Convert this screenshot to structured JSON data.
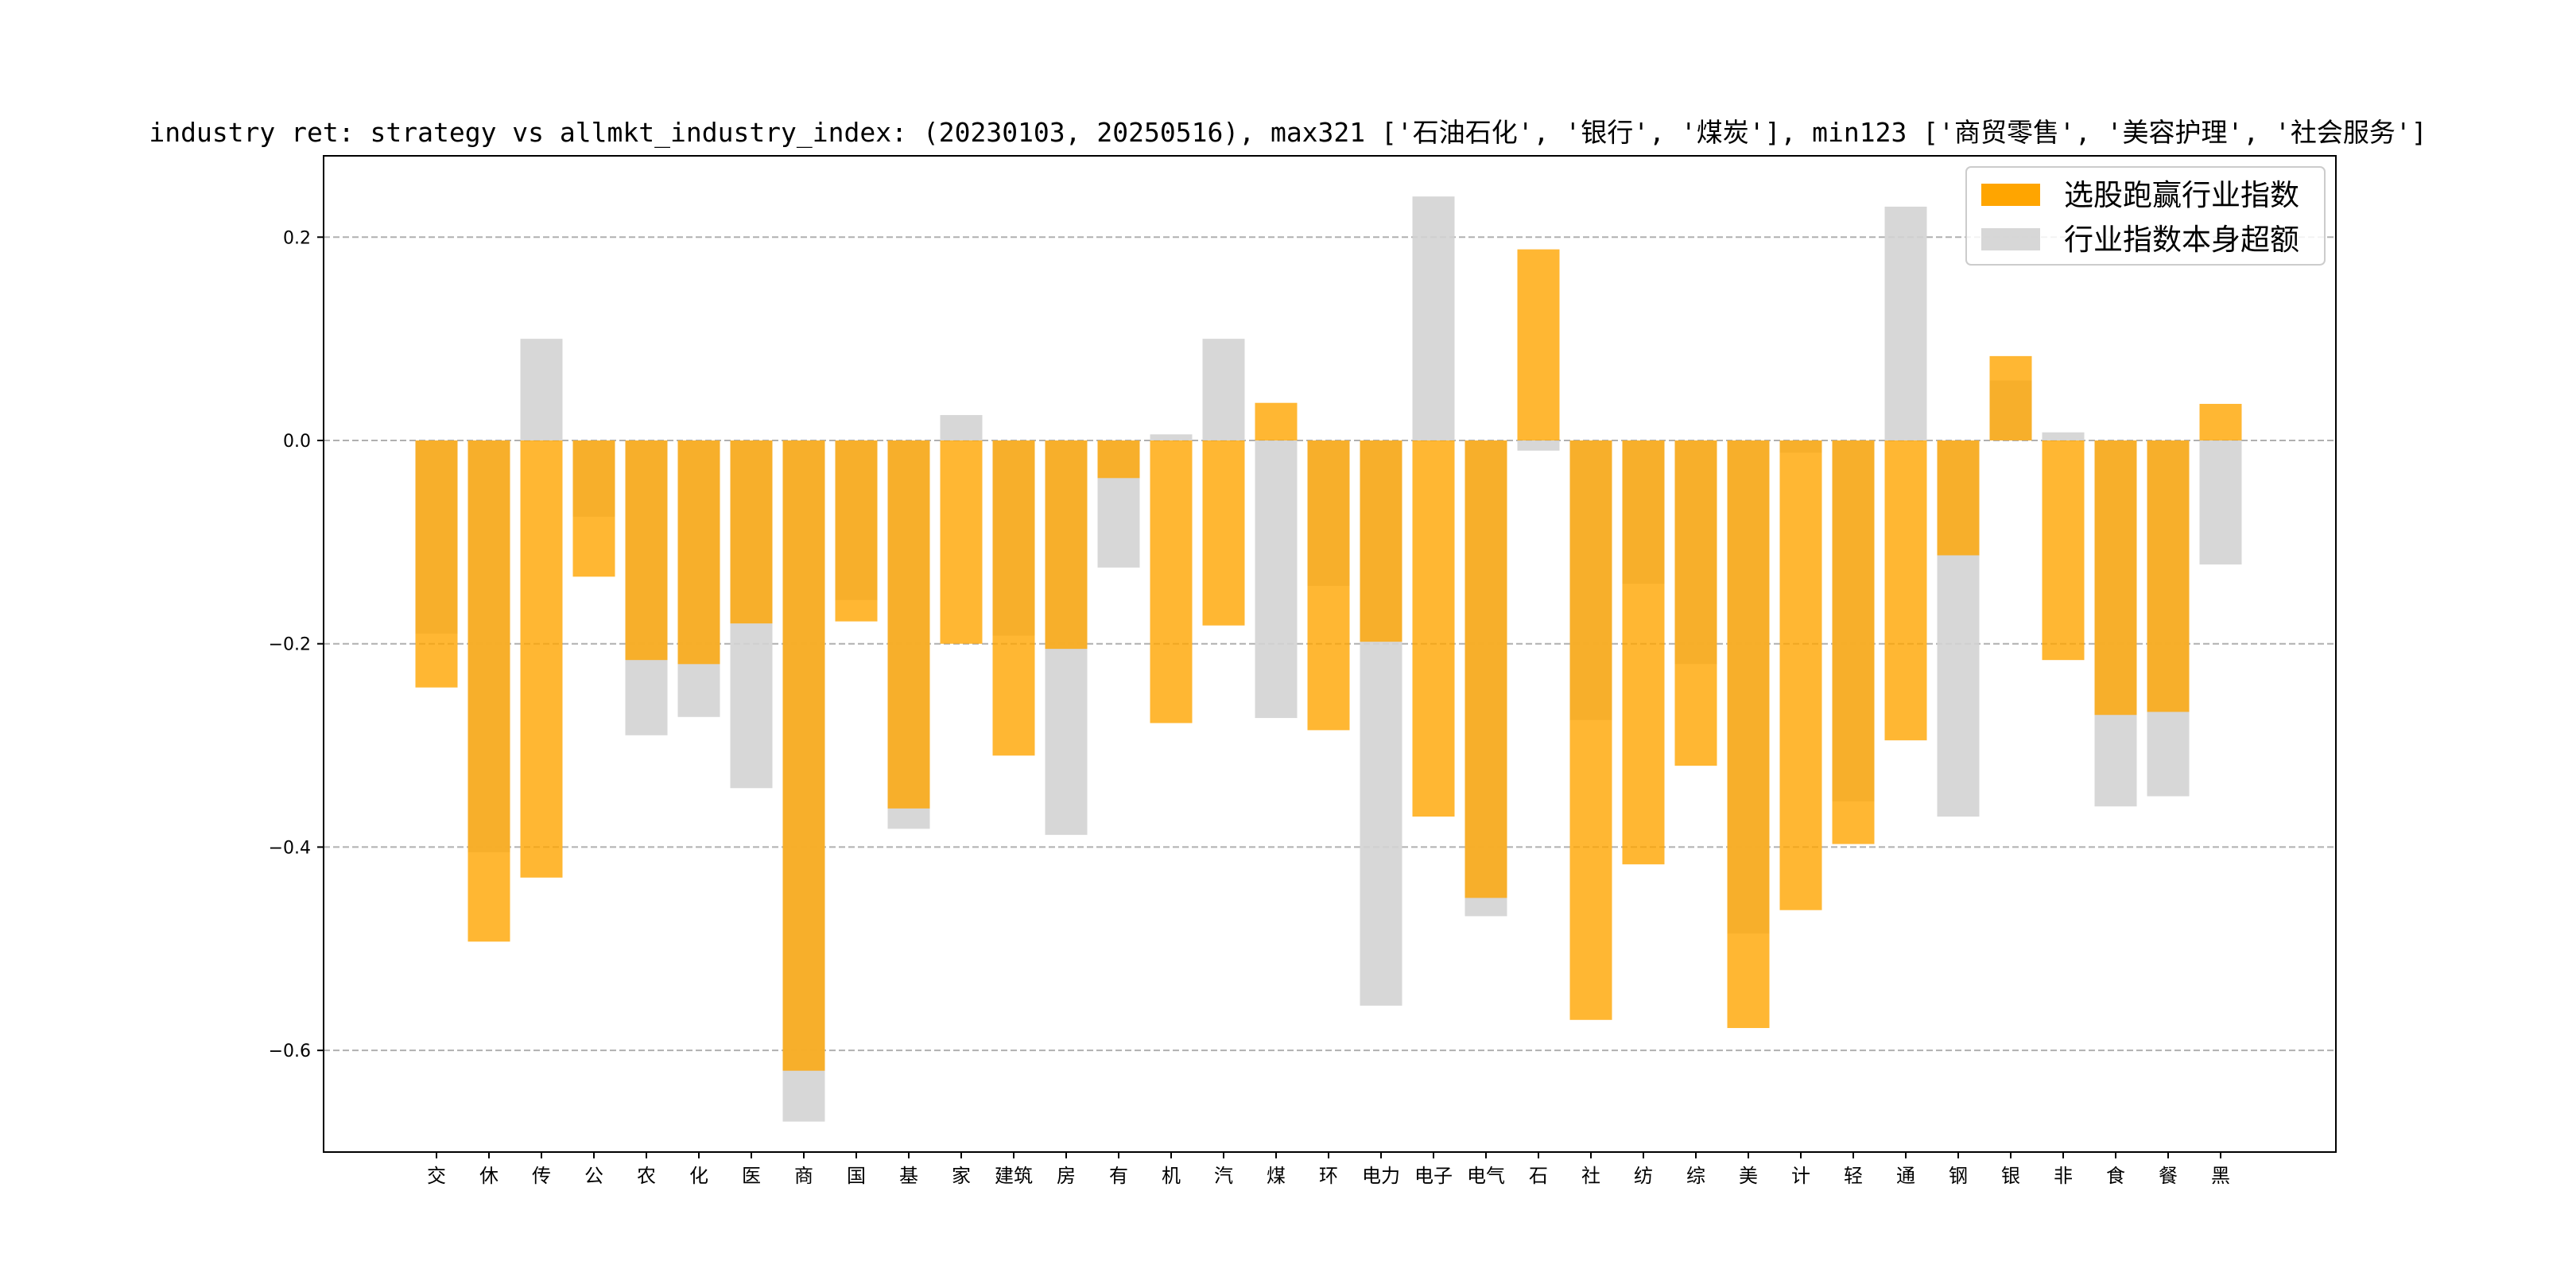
{
  "chart_data": {
    "type": "bar",
    "title": "industry ret: strategy vs allmkt_industry_index: (20230103, 20250516), max321 ['石油石化', '银行', '煤炭'], min123 ['商贸零售', '美容护理', '社会服务']",
    "xlabel": "",
    "ylabel": "",
    "ylim": [
      -0.7,
      0.28
    ],
    "yticks": [
      0.2,
      0.0,
      -0.2,
      -0.4,
      -0.6
    ],
    "ytick_labels": [
      "0.2",
      "0.0",
      "−0.2",
      "−0.4",
      "−0.6"
    ],
    "grid": "horizontal dashed",
    "legend_position": "top-right",
    "categories": [
      "交",
      "休",
      "传",
      "公",
      "农",
      "化",
      "医",
      "商",
      "国",
      "基",
      "家",
      "建筑",
      "房",
      "有",
      "机",
      "汽",
      "煤",
      "环",
      "电力",
      "电子",
      "电气",
      "石",
      "社",
      "纺",
      "综",
      "美",
      "计",
      "轻",
      "通",
      "钢",
      "银",
      "非",
      "食",
      "餐",
      "黑"
    ],
    "series": [
      {
        "name": "选股跑赢行业指数",
        "color": "#ffa500",
        "values": [
          -0.243,
          -0.493,
          -0.43,
          -0.134,
          -0.216,
          -0.22,
          -0.18,
          -0.62,
          -0.178,
          -0.362,
          -0.2,
          -0.31,
          -0.205,
          -0.037,
          -0.278,
          -0.182,
          0.037,
          -0.285,
          -0.198,
          -0.37,
          -0.45,
          0.188,
          -0.57,
          -0.417,
          -0.32,
          -0.578,
          -0.462,
          -0.397,
          -0.295,
          -0.113,
          0.083,
          -0.216,
          -0.27,
          -0.267,
          0.036
        ]
      },
      {
        "name": "行业指数本身超额",
        "color": "#d3d3d3",
        "values": [
          -0.19,
          -0.405,
          0.1,
          -0.075,
          -0.29,
          -0.272,
          -0.342,
          -0.67,
          -0.157,
          -0.382,
          0.025,
          -0.192,
          -0.388,
          -0.125,
          0.006,
          0.1,
          -0.273,
          -0.143,
          -0.556,
          0.24,
          -0.468,
          -0.01,
          -0.275,
          -0.141,
          -0.22,
          -0.485,
          -0.012,
          -0.355,
          0.23,
          -0.37,
          0.059,
          0.008,
          -0.36,
          -0.35,
          -0.122
        ]
      }
    ]
  }
}
